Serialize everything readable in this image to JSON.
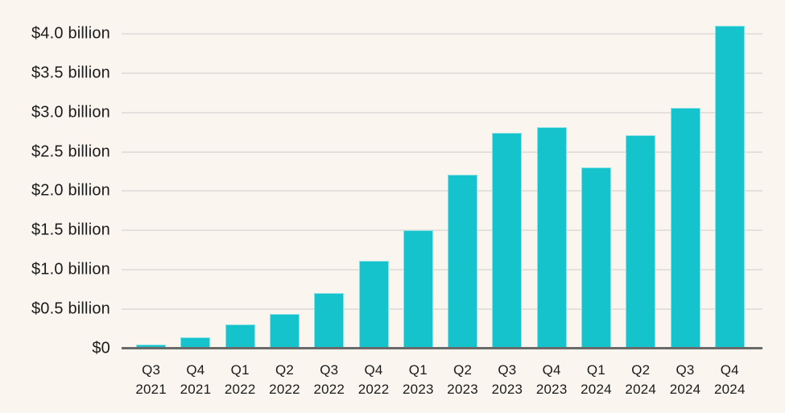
{
  "chart_data": {
    "type": "bar",
    "title": "",
    "xlabel": "",
    "ylabel": "",
    "unit": "$ billion",
    "grid": true,
    "legend": false,
    "ylim": [
      0,
      4.2
    ],
    "categories": [
      "Q3 2021",
      "Q4 2021",
      "Q1 2022",
      "Q2 2022",
      "Q3 2022",
      "Q4 2022",
      "Q1 2023",
      "Q2 2023",
      "Q3 2023",
      "Q4 2023",
      "Q1 2024",
      "Q2 2024",
      "Q3 2024",
      "Q4 2024"
    ],
    "categories_lines": [
      [
        "Q3",
        "2021"
      ],
      [
        "Q4",
        "2021"
      ],
      [
        "Q1",
        "2022"
      ],
      [
        "Q2",
        "2022"
      ],
      [
        "Q3",
        "2022"
      ],
      [
        "Q4",
        "2022"
      ],
      [
        "Q1",
        "2023"
      ],
      [
        "Q2",
        "2023"
      ],
      [
        "Q3",
        "2023"
      ],
      [
        "Q4",
        "2023"
      ],
      [
        "Q1",
        "2024"
      ],
      [
        "Q2",
        "2024"
      ],
      [
        "Q3",
        "2024"
      ],
      [
        "Q4",
        "2024"
      ]
    ],
    "values": [
      0.04,
      0.13,
      0.3,
      0.43,
      0.7,
      1.11,
      1.5,
      2.2,
      2.74,
      2.81,
      2.3,
      2.71,
      3.05,
      4.1
    ],
    "y_ticks": [
      {
        "value": 0,
        "label": "$0"
      },
      {
        "value": 0.5,
        "label": "$0.5 billion"
      },
      {
        "value": 1.0,
        "label": "$1.0 billion"
      },
      {
        "value": 1.5,
        "label": "$1.5 billion"
      },
      {
        "value": 2.0,
        "label": "$2.0 billion"
      },
      {
        "value": 2.5,
        "label": "$2.5 billion"
      },
      {
        "value": 3.0,
        "label": "$3.0 billion"
      },
      {
        "value": 3.5,
        "label": "$3.5 billion"
      },
      {
        "value": 4.0,
        "label": "$4.0 billion"
      }
    ],
    "colors": {
      "bar": "#15C3CD",
      "background": "#FBF5F0",
      "gridline": "#E3E0DD",
      "axis": "#6A6A6A",
      "text": "#1B1B1B"
    }
  }
}
